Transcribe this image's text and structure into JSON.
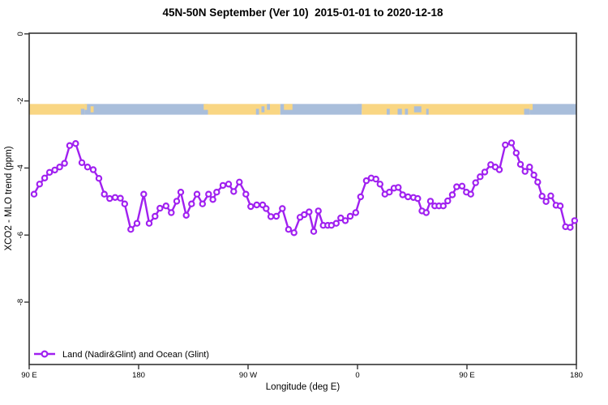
{
  "title": "45N-50N September (Ver 10)  2015-01-01 to 2020-12-18",
  "chart_data": {
    "type": "line",
    "title": "45N-50N September (Ver 10)  2015-01-01 to 2020-12-18",
    "xlabel": "Longitude (deg E)",
    "ylabel": "XCO2 - MLO trend (ppm)",
    "xlim": [
      90,
      540
    ],
    "ylim": [
      -9.86,
      0.02
    ],
    "grid": false,
    "legend_position": "bottom-left",
    "x_ticks": [
      {
        "lon": 90,
        "label": "90 E"
      },
      {
        "lon": 180,
        "label": "180"
      },
      {
        "lon": 270,
        "label": "90 W"
      },
      {
        "lon": 360,
        "label": "0"
      },
      {
        "lon": 450,
        "label": "90 E"
      },
      {
        "lon": 540,
        "label": "180"
      }
    ],
    "y_ticks": [
      {
        "v": 0,
        "label": "0"
      },
      {
        "v": -2,
        "label": "-2"
      },
      {
        "v": -4,
        "label": "-4"
      },
      {
        "v": -6,
        "label": "-6"
      },
      {
        "v": -8,
        "label": "-8"
      }
    ],
    "axis_color": "#333333",
    "series": [
      {
        "name": "Land (Nadir&Glint) and Ocean (Glint)",
        "color": "#A020F0",
        "marker": "open-circle",
        "points": [
          [
            94,
            -4.78
          ],
          [
            98.5,
            -4.48
          ],
          [
            102.7,
            -4.3
          ],
          [
            106.7,
            -4.13
          ],
          [
            111.1,
            -4.06
          ],
          [
            115.1,
            -3.97
          ],
          [
            119.1,
            -3.86
          ],
          [
            123.3,
            -3.33
          ],
          [
            128.2,
            -3.27
          ],
          [
            133.3,
            -3.84
          ],
          [
            138,
            -3.97
          ],
          [
            142.7,
            -4.05
          ],
          [
            147.3,
            -4.31
          ],
          [
            151.8,
            -4.78
          ],
          [
            156.2,
            -4.91
          ],
          [
            160.7,
            -4.88
          ],
          [
            165,
            -4.9
          ],
          [
            168.5,
            -5.07
          ],
          [
            173.5,
            -5.83
          ],
          [
            178.7,
            -5.65
          ],
          [
            184.2,
            -4.78
          ],
          [
            188.7,
            -5.65
          ],
          [
            193.5,
            -5.44
          ],
          [
            197.5,
            -5.2
          ],
          [
            202.5,
            -5.13
          ],
          [
            206.9,
            -5.33
          ],
          [
            211.3,
            -4.99
          ],
          [
            214.7,
            -4.72
          ],
          [
            219.1,
            -5.41
          ],
          [
            223.5,
            -5.07
          ],
          [
            228,
            -4.78
          ],
          [
            232.5,
            -5.07
          ],
          [
            237.5,
            -4.78
          ],
          [
            241.1,
            -4.94
          ],
          [
            244.2,
            -4.72
          ],
          [
            249.3,
            -4.52
          ],
          [
            254,
            -4.48
          ],
          [
            258.2,
            -4.7
          ],
          [
            262.9,
            -4.42
          ],
          [
            268.2,
            -4.78
          ],
          [
            272.2,
            -5.15
          ],
          [
            277.1,
            -5.1
          ],
          [
            282,
            -5.1
          ],
          [
            284.9,
            -5.21
          ],
          [
            288.7,
            -5.45
          ],
          [
            293.3,
            -5.44
          ],
          [
            298.2,
            -5.21
          ],
          [
            303.3,
            -5.83
          ],
          [
            307.8,
            -5.93
          ],
          [
            312.7,
            -5.47
          ],
          [
            316.2,
            -5.39
          ],
          [
            320.2,
            -5.31
          ],
          [
            324,
            -5.89
          ],
          [
            327.8,
            -5.28
          ],
          [
            331.8,
            -5.71
          ],
          [
            335.5,
            -5.71
          ],
          [
            338.5,
            -5.71
          ],
          [
            342.5,
            -5.65
          ],
          [
            346.2,
            -5.49
          ],
          [
            350,
            -5.57
          ],
          [
            354,
            -5.44
          ],
          [
            358.5,
            -5.33
          ],
          [
            362.5,
            -4.86
          ],
          [
            367.3,
            -4.38
          ],
          [
            371.3,
            -4.3
          ],
          [
            375.1,
            -4.33
          ],
          [
            378.5,
            -4.48
          ],
          [
            382.5,
            -4.78
          ],
          [
            386.2,
            -4.72
          ],
          [
            390,
            -4.6
          ],
          [
            393.5,
            -4.58
          ],
          [
            397.1,
            -4.8
          ],
          [
            401.5,
            -4.86
          ],
          [
            406,
            -4.88
          ],
          [
            409.5,
            -4.91
          ],
          [
            413,
            -5.28
          ],
          [
            416.5,
            -5.33
          ],
          [
            420,
            -4.99
          ],
          [
            423.5,
            -5.13
          ],
          [
            427,
            -5.13
          ],
          [
            430.5,
            -5.13
          ],
          [
            434.2,
            -4.98
          ],
          [
            438,
            -4.8
          ],
          [
            441.5,
            -4.56
          ],
          [
            446,
            -4.54
          ],
          [
            449.5,
            -4.72
          ],
          [
            453.1,
            -4.78
          ],
          [
            457.1,
            -4.44
          ],
          [
            460.9,
            -4.26
          ],
          [
            464.7,
            -4.12
          ],
          [
            469.5,
            -3.9
          ],
          [
            473.3,
            -3.97
          ],
          [
            476.7,
            -4.05
          ],
          [
            481.5,
            -3.31
          ],
          [
            486.7,
            -3.25
          ],
          [
            490.5,
            -3.55
          ],
          [
            494,
            -3.89
          ],
          [
            497.8,
            -4.1
          ],
          [
            501.5,
            -3.97
          ],
          [
            505.1,
            -4.21
          ],
          [
            508.2,
            -4.42
          ],
          [
            511.8,
            -4.84
          ],
          [
            515.1,
            -5.0
          ],
          [
            518.9,
            -4.83
          ],
          [
            523.3,
            -5.11
          ],
          [
            526.7,
            -5.13
          ],
          [
            531.1,
            -5.75
          ],
          [
            534.9,
            -5.77
          ],
          [
            538.5,
            -5.57
          ]
        ]
      }
    ],
    "land_ocean_band": {
      "description": "land/ocean map strip for the 45N-50N latitude band",
      "land_color": "#F9D683",
      "ocean_color": "#A9BEDB",
      "y_range_ppm": [
        -2.09,
        -2.41
      ],
      "segments": [
        [
          90,
          135.5,
          "land"
        ],
        [
          135.5,
          237,
          "ocean"
        ],
        [
          237,
          296.5,
          "land"
        ],
        [
          296.5,
          363.5,
          "ocean"
        ],
        [
          363.5,
          501.5,
          "land"
        ],
        [
          501.5,
          540,
          "ocean"
        ]
      ],
      "specks": [
        [
          132.5,
          135.5,
          "ocean",
          "bottom"
        ],
        [
          135.5,
          137.5,
          "land",
          "top"
        ],
        [
          140.5,
          143,
          "land",
          "mid"
        ],
        [
          233.5,
          237,
          "land",
          "top"
        ],
        [
          276.5,
          279,
          "ocean",
          "bottom"
        ],
        [
          281,
          283.5,
          "ocean",
          "mid"
        ],
        [
          285.5,
          288,
          "ocean",
          "top"
        ],
        [
          299.5,
          306.5,
          "land",
          "top"
        ],
        [
          360,
          363.5,
          "ocean",
          "top"
        ],
        [
          384,
          386.5,
          "ocean",
          "bottom"
        ],
        [
          393,
          396.5,
          "ocean",
          "bottom"
        ],
        [
          399,
          401.5,
          "ocean",
          "bottom"
        ],
        [
          406.5,
          412.5,
          "ocean",
          "mid"
        ],
        [
          416.5,
          418.5,
          "ocean",
          "bottom"
        ],
        [
          497,
          501.5,
          "ocean",
          "bottom"
        ],
        [
          501.5,
          504,
          "land",
          "top"
        ]
      ]
    }
  },
  "legend": {
    "label": "Land (Nadir&Glint) and Ocean (Glint)"
  }
}
